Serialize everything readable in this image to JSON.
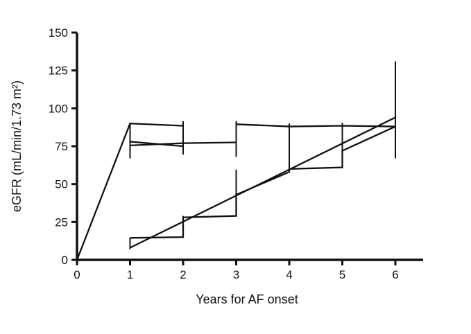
{
  "figure": {
    "background": "#ffffff",
    "ink": "#111111"
  },
  "chart_data": {
    "type": "line",
    "title": "",
    "xlabel": "Years for AF onset",
    "ylabel": "eGFR (mL/min/1.73 m²)",
    "xlim": [
      0,
      6.6
    ],
    "ylim": [
      0,
      150
    ],
    "x_ticks": [
      0,
      1,
      2,
      3,
      4,
      5,
      6
    ],
    "y_ticks": [
      0,
      25,
      50,
      75,
      100,
      125,
      150
    ],
    "grid": false,
    "legend": "none",
    "line_color": "#111111",
    "series": [
      {
        "name": "series-1-rapid-rise-plateau",
        "points": [
          [
            0,
            0
          ],
          [
            1,
            90
          ],
          [
            2,
            88.5
          ]
        ]
      },
      {
        "name": "series-2-mid-plateau",
        "points": [
          [
            1,
            75.5
          ],
          [
            2,
            77
          ],
          [
            3,
            77.5
          ]
        ]
      },
      {
        "name": "series-3-mid-crossing",
        "points": [
          [
            1,
            78
          ],
          [
            2,
            75
          ]
        ]
      },
      {
        "name": "series-4-late-plateau",
        "points": [
          [
            3,
            89.5
          ],
          [
            4,
            88
          ],
          [
            5,
            88.5
          ],
          [
            6,
            88
          ]
        ]
      },
      {
        "name": "series-5-progressive-steps",
        "points": [
          [
            1,
            14.5
          ],
          [
            2,
            15
          ],
          [
            2,
            28
          ],
          [
            3,
            29
          ],
          [
            3,
            43
          ],
          [
            4,
            58
          ],
          [
            4,
            60
          ],
          [
            5,
            61
          ],
          [
            5,
            72
          ],
          [
            6,
            88
          ]
        ]
      },
      {
        "name": "series-6-linear-trend",
        "points": [
          [
            1,
            8
          ],
          [
            6,
            94
          ]
        ]
      }
    ],
    "error_bars": [
      {
        "x": 1,
        "low": 67,
        "high": 90.5
      },
      {
        "x": 1,
        "low": 7,
        "high": 14.6
      },
      {
        "x": 2,
        "low": 69.5,
        "high": 91.5
      },
      {
        "x": 2,
        "low": 17,
        "high": 29
      },
      {
        "x": 3,
        "low": 68,
        "high": 91.5
      },
      {
        "x": 3,
        "low": 30,
        "high": 59.5
      },
      {
        "x": 4,
        "low": 58,
        "high": 90
      },
      {
        "x": 5,
        "low": 61,
        "high": 90.5
      },
      {
        "x": 6,
        "low": 67,
        "high": 131
      }
    ]
  }
}
